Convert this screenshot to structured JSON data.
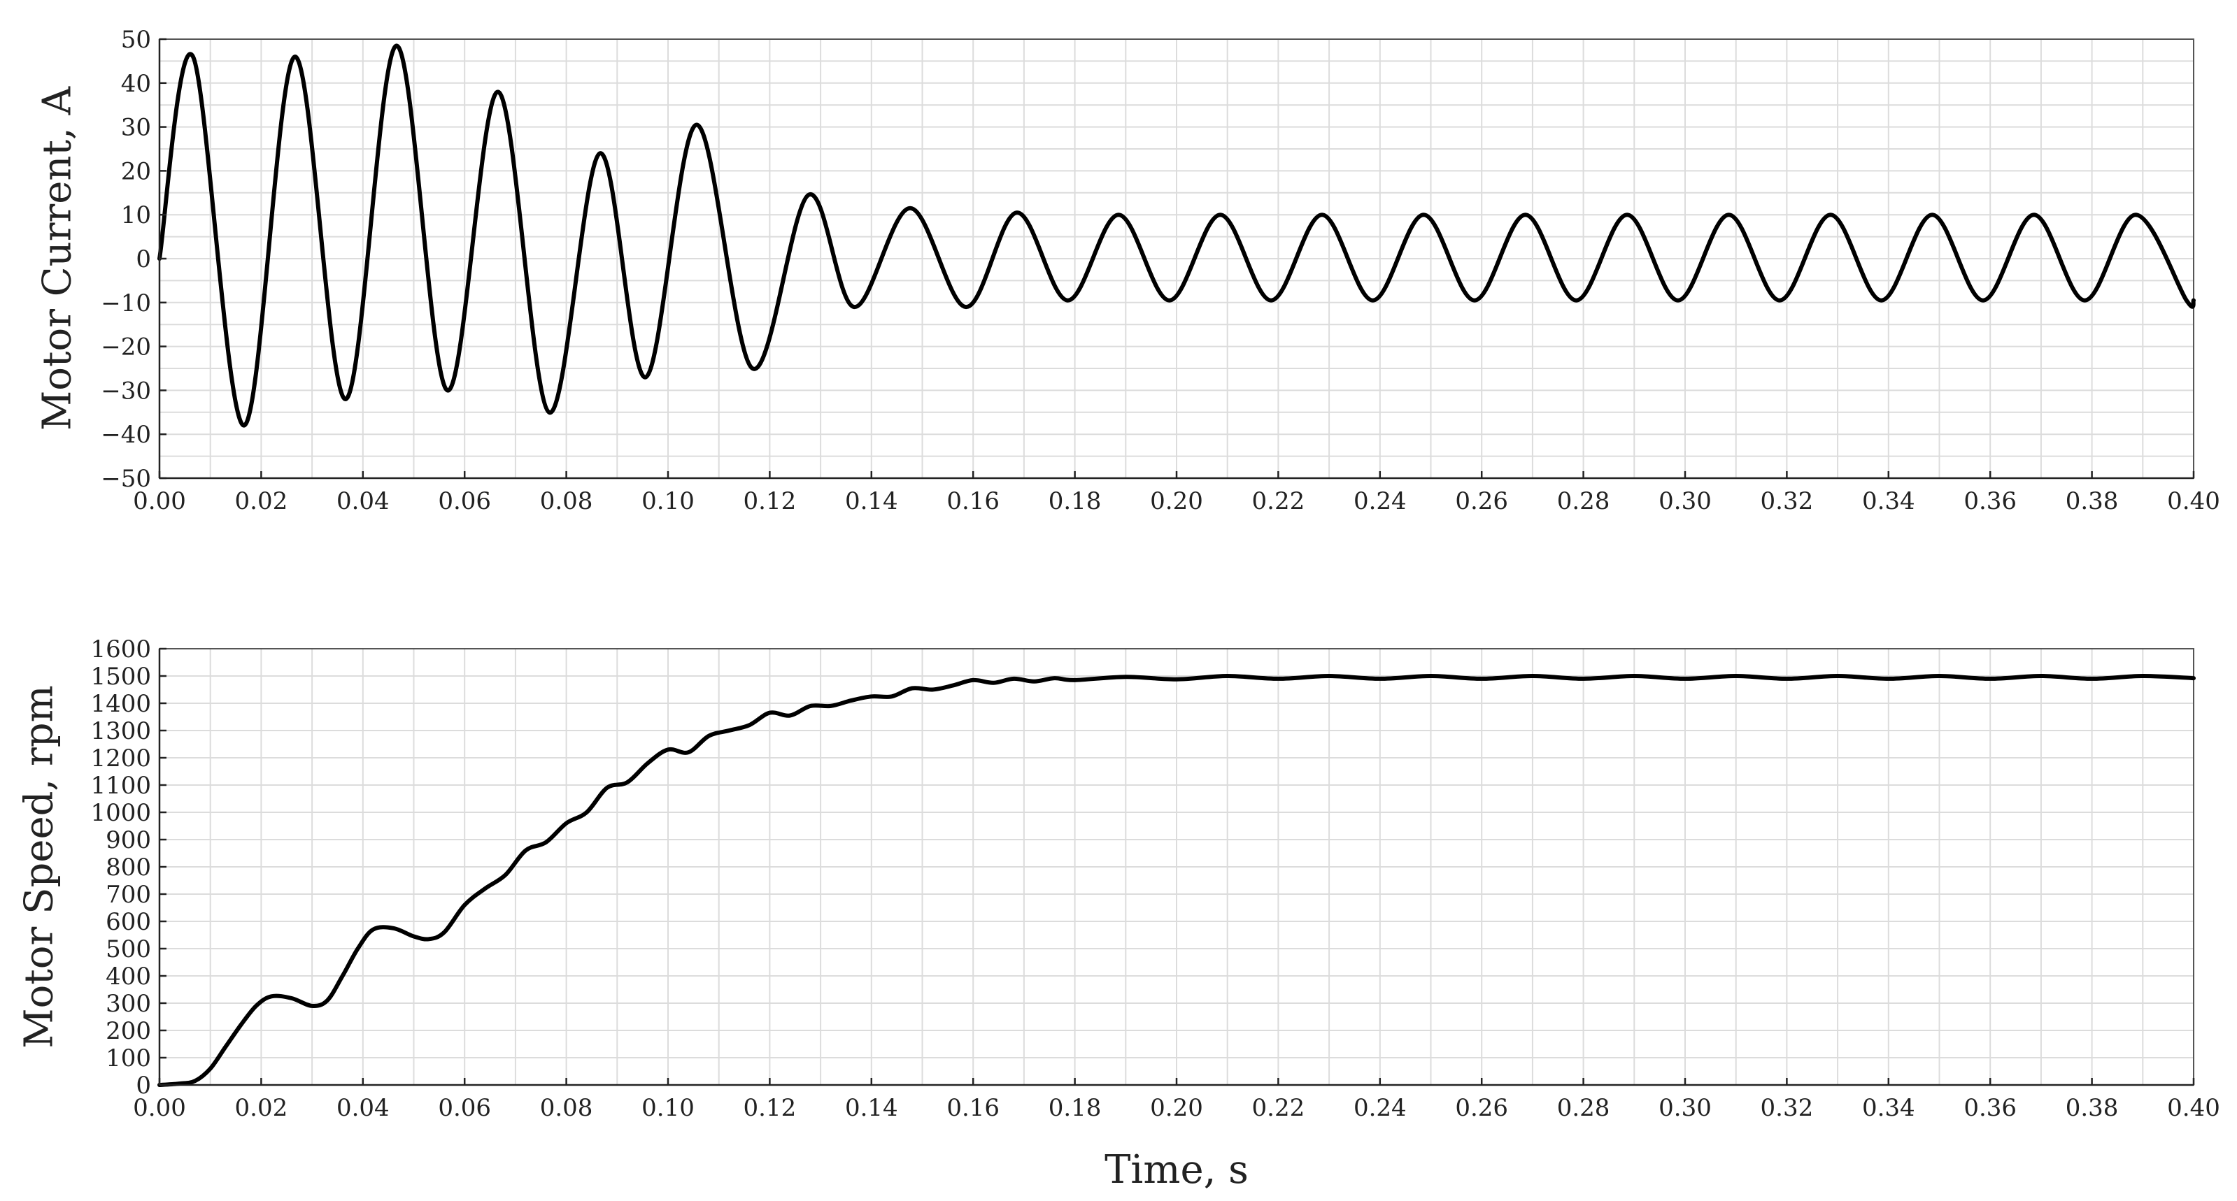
{
  "chart_data": [
    {
      "type": "line",
      "title": "",
      "xlabel": "",
      "ylabel": "Motor Current, A",
      "xlim": [
        0,
        0.4
      ],
      "ylim": [
        -50,
        50
      ],
      "grid": true,
      "x_ticks": [
        "0.00",
        "0.02",
        "0.04",
        "0.06",
        "0.08",
        "0.10",
        "0.12",
        "0.14",
        "0.16",
        "0.18",
        "0.20",
        "0.22",
        "0.24",
        "0.26",
        "0.28",
        "0.30",
        "0.32",
        "0.34",
        "0.36",
        "0.38",
        "0.40"
      ],
      "y_ticks": [
        "50",
        "40",
        "30",
        "20",
        "10",
        "0",
        "−10",
        "−20",
        "−30",
        "−40",
        "−50"
      ],
      "line_color": "#000000",
      "series": [
        {
          "x": [
            0.0,
            0.0066,
            0.0166,
            0.0266,
            0.0366,
            0.0466,
            0.0566,
            0.0666,
            0.0766,
            0.0866,
            0.0956,
            0.1056,
            0.1166,
            0.1276,
            0.1366,
            0.1476,
            0.1586,
            0.1686,
            0.1786,
            0.1886,
            0.1986,
            0.2086,
            0.2186,
            0.2286,
            0.2386,
            0.2486,
            0.2586,
            0.2686,
            0.2786,
            0.2886,
            0.2986,
            0.3086,
            0.3186,
            0.3286,
            0.3386,
            0.3486,
            0.3586,
            0.3686,
            0.3786,
            0.3886,
            0.3986,
            0.4
          ],
          "values": [
            0,
            46,
            -38,
            46,
            -32,
            48.5,
            -30,
            38,
            -35,
            24,
            -27,
            30.5,
            -25,
            14.5,
            -11,
            11.5,
            -11,
            10.5,
            -9.5,
            10,
            -9.5,
            10,
            -9.5,
            10,
            -9.5,
            10,
            -9.5,
            10,
            -9.5,
            10,
            -9.5,
            10,
            -9.5,
            10,
            -9.5,
            10,
            -9.5,
            10,
            -9.5,
            10,
            -9.5,
            -9.5
          ]
        }
      ]
    },
    {
      "type": "line",
      "title": "",
      "xlabel": "Time, s",
      "ylabel": "Motor Speed, rpm",
      "xlim": [
        0,
        0.4
      ],
      "ylim": [
        0,
        1600
      ],
      "grid": true,
      "x_ticks": [
        "0.00",
        "0.02",
        "0.04",
        "0.06",
        "0.08",
        "0.10",
        "0.12",
        "0.14",
        "0.16",
        "0.18",
        "0.20",
        "0.22",
        "0.24",
        "0.26",
        "0.28",
        "0.30",
        "0.32",
        "0.34",
        "0.36",
        "0.38",
        "0.40"
      ],
      "y_ticks": [
        "1600",
        "1500",
        "1400",
        "1300",
        "1200",
        "1100",
        "1000",
        "900",
        "800",
        "700",
        "600",
        "500",
        "400",
        "300",
        "200",
        "100",
        "0"
      ],
      "line_color": "#000000",
      "series": [
        {
          "x": [
            0.0,
            0.004,
            0.007,
            0.01,
            0.013,
            0.016,
            0.019,
            0.022,
            0.026,
            0.03,
            0.033,
            0.036,
            0.039,
            0.042,
            0.046,
            0.05,
            0.053,
            0.056,
            0.06,
            0.064,
            0.068,
            0.072,
            0.076,
            0.08,
            0.084,
            0.088,
            0.092,
            0.096,
            0.1,
            0.104,
            0.108,
            0.112,
            0.116,
            0.12,
            0.124,
            0.128,
            0.132,
            0.136,
            0.14,
            0.144,
            0.148,
            0.152,
            0.156,
            0.16,
            0.164,
            0.168,
            0.172,
            0.176,
            0.18,
            0.19,
            0.2,
            0.21,
            0.22,
            0.23,
            0.24,
            0.25,
            0.26,
            0.27,
            0.28,
            0.29,
            0.3,
            0.31,
            0.32,
            0.33,
            0.34,
            0.35,
            0.36,
            0.37,
            0.38,
            0.39,
            0.4
          ],
          "values": [
            0,
            5,
            15,
            60,
            140,
            220,
            290,
            325,
            318,
            290,
            310,
            400,
            500,
            570,
            575,
            545,
            535,
            560,
            660,
            720,
            770,
            860,
            890,
            960,
            1000,
            1090,
            1110,
            1180,
            1230,
            1220,
            1280,
            1300,
            1320,
            1365,
            1355,
            1390,
            1390,
            1410,
            1425,
            1425,
            1455,
            1450,
            1465,
            1485,
            1475,
            1490,
            1480,
            1492,
            1485,
            1497,
            1488,
            1500,
            1490,
            1500,
            1490,
            1500,
            1490,
            1500,
            1490,
            1500,
            1490,
            1500,
            1490,
            1500,
            1490,
            1500,
            1490,
            1500,
            1490,
            1500,
            1492
          ]
        }
      ]
    }
  ]
}
